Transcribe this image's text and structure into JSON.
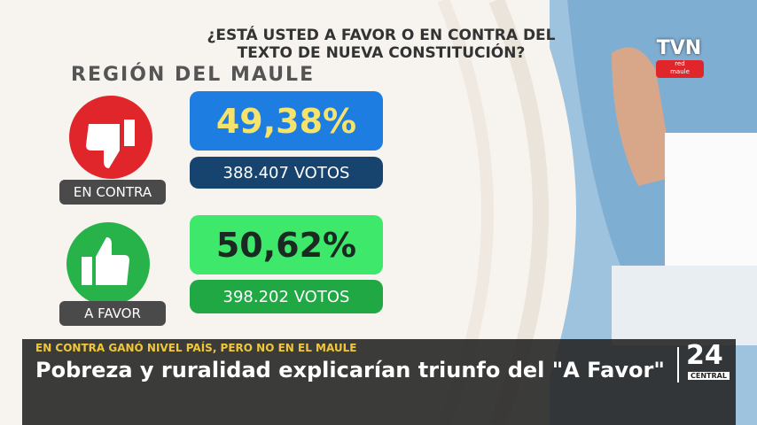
{
  "question": {
    "line1": "¿ESTÁ USTED A FAVOR O EN CONTRA DEL",
    "line2": "TEXTO DE NUEVA CONSTITUCIÓN?"
  },
  "region": "REGIÓN DEL MAULE",
  "results": [
    {
      "label": "EN CONTRA",
      "percent": "49,38%",
      "votes": "388.407 VOTOS"
    },
    {
      "label": "A FAVOR",
      "percent": "50,62%",
      "votes": "398.202 VOTOS"
    }
  ],
  "logo": {
    "name": "TVN",
    "line1": "red",
    "line2": "maule"
  },
  "lower_third": {
    "kicker": "EN  CONTRA GANÓ  NIVEL PAÍS, PERO NO EN EL MAULE",
    "headline": "Pobreza y ruralidad explicarían triunfo del \"A Favor\"",
    "channel": "24",
    "channel_sub": "CENTRAL"
  }
}
